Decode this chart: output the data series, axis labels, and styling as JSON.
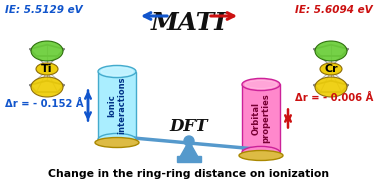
{
  "title_text": "MATI",
  "subtitle_text": "DFT",
  "bottom_text": "Change in the ring-ring distance on ionization",
  "ie_left": "IE: 5.5129 eV",
  "ie_right": "IE: 5.6094 eV",
  "delta_left": "Δr = - 0.152 Å",
  "delta_right": "Δr = - 0.006 Å",
  "metal_left": "Ti",
  "metal_right": "Cr",
  "cylinder_left_label": "Ionic\ninteractions",
  "cylinder_right_label": "Orbital\nproperties",
  "cylinder_left_color": "#aaeeff",
  "cylinder_right_color": "#ff88cc",
  "cylinder_left_edge": "#44aacc",
  "cylinder_right_edge": "#cc2299",
  "arrow_left_color": "#1155cc",
  "arrow_right_color": "#cc1111",
  "title_color": "#111111",
  "ie_left_color": "#1155cc",
  "ie_right_color": "#cc1111",
  "delta_left_color": "#1155cc",
  "delta_right_color": "#cc1111",
  "bg_color": "#ffffff",
  "balance_color": "#5599cc",
  "plate_color": "#ddbb44",
  "bottom_text_color": "#000000",
  "lobe_green": "#66cc33",
  "lobe_yellow": "#eecc00",
  "stick_color": "#888888"
}
